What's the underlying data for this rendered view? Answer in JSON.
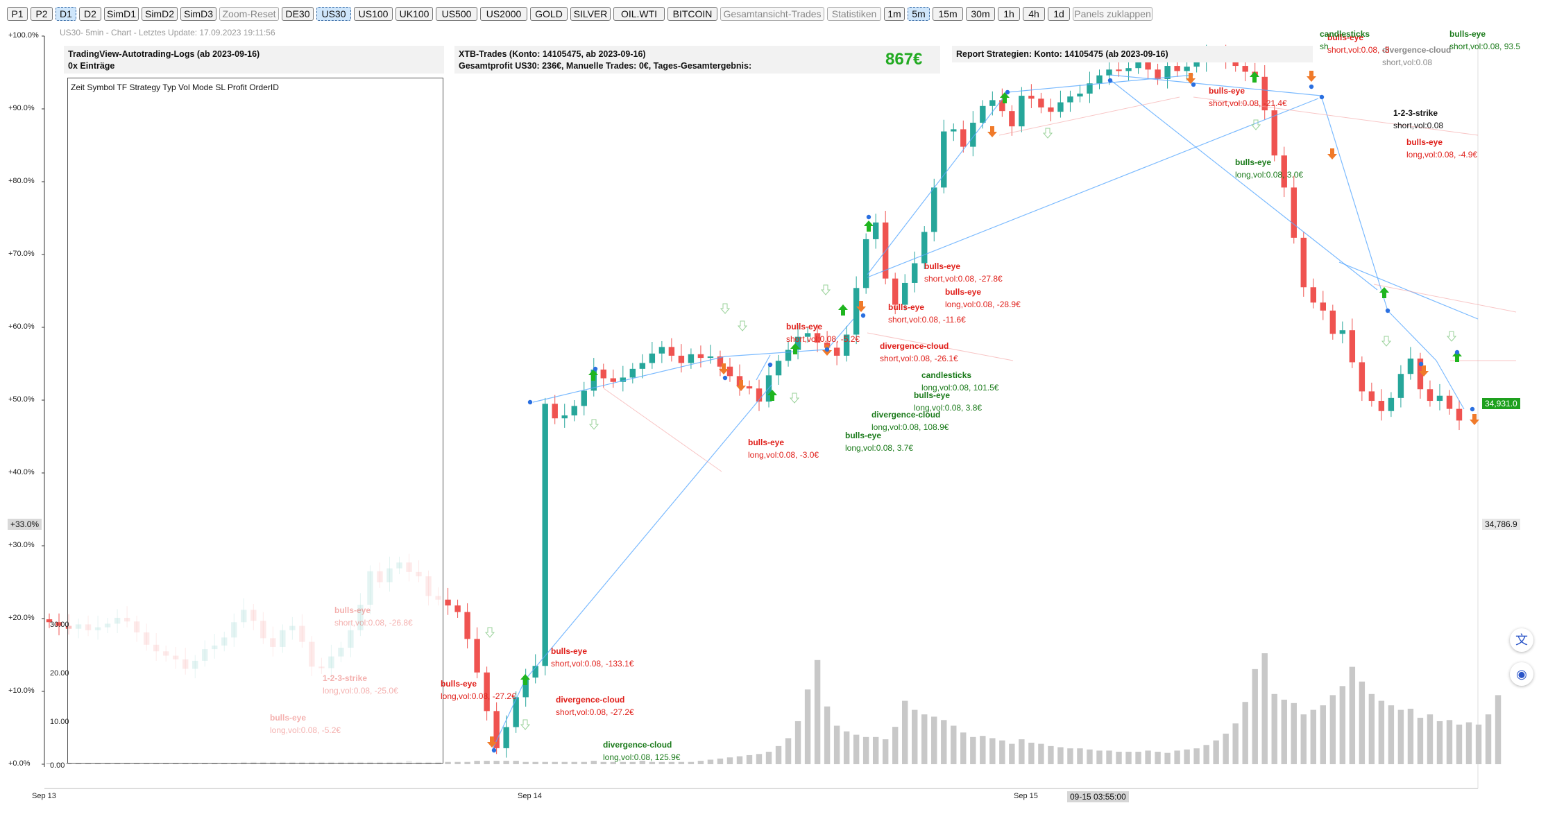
{
  "toolbar": {
    "buttons": [
      {
        "label": "P1",
        "state": "normal"
      },
      {
        "label": "P2",
        "state": "normal"
      },
      {
        "label": "D1",
        "state": "active"
      },
      {
        "label": "D2",
        "state": "normal"
      },
      {
        "label": "SimD1",
        "state": "normal"
      },
      {
        "label": "SimD2",
        "state": "normal"
      },
      {
        "label": "SimD3",
        "state": "normal"
      },
      {
        "label": "Zoom-Reset",
        "state": "dim"
      },
      {
        "label": "DE30",
        "state": "normal"
      },
      {
        "label": "US30",
        "state": "active"
      },
      {
        "label": "US100",
        "state": "normal"
      },
      {
        "label": "UK100",
        "state": "normal"
      },
      {
        "label": "US500",
        "state": "normal"
      },
      {
        "label": "US2000",
        "state": "normal"
      },
      {
        "label": "GOLD",
        "state": "normal"
      },
      {
        "label": "SILVER",
        "state": "normal"
      },
      {
        "label": "OIL.WTI",
        "state": "normal"
      },
      {
        "label": "BITCOIN",
        "state": "normal"
      },
      {
        "label": "Gesamtansicht-Trades",
        "state": "dim"
      },
      {
        "label": "Statistiken",
        "state": "dim"
      },
      {
        "label": "1m",
        "state": "normal"
      },
      {
        "label": "5m",
        "state": "active"
      },
      {
        "label": "15m",
        "state": "normal"
      },
      {
        "label": "30m",
        "state": "normal"
      },
      {
        "label": "1h",
        "state": "normal"
      },
      {
        "label": "4h",
        "state": "normal"
      },
      {
        "label": "1d",
        "state": "normal"
      },
      {
        "label": "Panels zuklappen",
        "state": "dim"
      }
    ]
  },
  "caption": "US30- 5min - Chart - Letztes Update: 17.09.2023 19:11:56",
  "panels": {
    "logs": {
      "title": "TradingView-Autotrading-Logs (ab 2023-09-16)",
      "subtitle": "0x Einträge",
      "columns": "Zeit Symbol TF Strategy Typ Vol Mode SL Profit OrderID"
    },
    "xtb": {
      "title": "XTB-Trades (Konto: 14105475, ab 2023-09-16)",
      "subtitle": "Gesamtprofit US30: 236€, Manuelle Trades: 0€, Tages-Gesamtergebnis:",
      "profit": "867€"
    },
    "report": {
      "title": "Report Strategien: Konto: 14105475 (ab 2023-09-16)"
    }
  },
  "axes": {
    "y_percent": [
      "+100.0%",
      "+90.0%",
      "+80.0%",
      "+70.0%",
      "+60.0%",
      "+50.0%",
      "+40.0%",
      "+30.0%",
      "+20.0%",
      "+10.0%",
      "+0.0%"
    ],
    "y_left_inner": [
      "30.00",
      "20.00",
      "10.00",
      "0.00"
    ],
    "x": [
      "Sep 13",
      "Sep 14",
      "Sep 15"
    ],
    "crosshair_time": "09-15 03:55:00",
    "left_marker": "+33.0%",
    "price_right": "34,786.9",
    "price_current": "34,931.0"
  },
  "chart_data": {
    "type": "candlestick",
    "series_colors": {
      "up": "#26a69a",
      "down": "#ef5350",
      "volume": "#c8c8c8",
      "trade_line": "#5aa9ff"
    },
    "close_percent": [
      19.5,
      19,
      18.6,
      19.2,
      18.4,
      18.8,
      19.3,
      20.1,
      19.6,
      18.1,
      16.4,
      15.5,
      14.9,
      14.4,
      13.1,
      14.2,
      15.8,
      16.3,
      17.4,
      19.5,
      21.2,
      19.7,
      17.3,
      16.1,
      18.4,
      19.0,
      16.8,
      13.4,
      13.2,
      14.8,
      16.0,
      18.4,
      21.9,
      26.5,
      25.0,
      26.9,
      27.7,
      26.4,
      25.8,
      23.1,
      22.6,
      21.8,
      20.9,
      17.2,
      12.6,
      7.3,
      2.2,
      5.1,
      9.2,
      11.9,
      13.5,
      49.5,
      47.5,
      47.9,
      49.2,
      51.3,
      54.2,
      53.0,
      52.5,
      53.1,
      54.3,
      55.1,
      56.4,
      57.3,
      56.1,
      55.1,
      56.3,
      55.8,
      56.0,
      54.6,
      53.3,
      51.9,
      51.6,
      49.8,
      53.4,
      55.4,
      56.9,
      58.7,
      59.2,
      57.9,
      57.2,
      56.1,
      59.0,
      65.4,
      72.1,
      74.4,
      66.7,
      63.1,
      66.1,
      68.8,
      73.1,
      79.2,
      86.9,
      87.2,
      84.8,
      88.1,
      90.4,
      91.2,
      89.7,
      87.6,
      91.8,
      91.4,
      90.2,
      89.6,
      90.9,
      91.7,
      92.1,
      93.5,
      94.6,
      95.4,
      95.2,
      95.6,
      96.8,
      95.4,
      94.1,
      95.9,
      95.2,
      95.8,
      96.4,
      97.2,
      97.6,
      96.8,
      95.9,
      95.1,
      94.4,
      89.8,
      83.6,
      79.2,
      72.3,
      65.5,
      63.4,
      62.3,
      59.1,
      59.6,
      55.2,
      51.2,
      49.9,
      48.5,
      50.3,
      53.6,
      55.7,
      51.5,
      49.9,
      50.6,
      48.8,
      47.2
    ],
    "volume": [
      1,
      1,
      1,
      1,
      1,
      1,
      1,
      1,
      1,
      1,
      1,
      1,
      1,
      1,
      1,
      1,
      1,
      1,
      1,
      1,
      2,
      2,
      2,
      2,
      2,
      2,
      2,
      2,
      2,
      2,
      2,
      2,
      2,
      2,
      2,
      2,
      2,
      3,
      2,
      2,
      2,
      2,
      2,
      2,
      3,
      3,
      3,
      3,
      3,
      2,
      2,
      2,
      2,
      2,
      2,
      2,
      3,
      2,
      2,
      2,
      2,
      3,
      2,
      2,
      2,
      2,
      2,
      3,
      4,
      5,
      6,
      7,
      8,
      9,
      11,
      16,
      23,
      38,
      66,
      92,
      51,
      34,
      29,
      26,
      24,
      24,
      22,
      33,
      56,
      48,
      44,
      42,
      39,
      34,
      28,
      24,
      25,
      23,
      21,
      18,
      22,
      19,
      18,
      16,
      15,
      14,
      14,
      13,
      12,
      12,
      11,
      11,
      11,
      12,
      11,
      10,
      12,
      13,
      14,
      17,
      21,
      27,
      36,
      55,
      84,
      98,
      62,
      57,
      54,
      44,
      48,
      52,
      61,
      69,
      86,
      73,
      62,
      56,
      52,
      48,
      49,
      41,
      44,
      38,
      39,
      35,
      37,
      35,
      44,
      61
    ],
    "trades": [
      {
        "strategy": "bulls-eye",
        "text": "short,vol:0.08, -133.1€",
        "color": "red"
      },
      {
        "strategy": "divergence-cloud",
        "text": "short,vol:0.08, -27.2€",
        "color": "red"
      },
      {
        "strategy": "divergence-cloud",
        "text": "long,vol:0.08, 125.9€",
        "color": "green"
      },
      {
        "strategy": "bulls-eye",
        "text": "long,vol:0.08, -27.2€",
        "color": "red"
      },
      {
        "strategy": "bulls-eye",
        "text": "long,vol:0.08, -3.0€",
        "color": "red"
      },
      {
        "strategy": "bulls-eye",
        "text": "short,vol:0.08, -5.2€",
        "color": "red"
      },
      {
        "strategy": "bulls-eye",
        "text": "long,vol:0.08, 3.7€",
        "color": "green"
      },
      {
        "strategy": "divergence-cloud",
        "text": "long,vol:0.08, 108.9€",
        "color": "green"
      },
      {
        "strategy": "bulls-eye",
        "text": "long,vol:0.08, 3.8€",
        "color": "green"
      },
      {
        "strategy": "candlesticks",
        "text": "long,vol:0.08, 101.5€",
        "color": "green"
      },
      {
        "strategy": "divergence-cloud",
        "text": "short,vol:0.08, -26.1€",
        "color": "red"
      },
      {
        "strategy": "bulls-eye",
        "text": "short,vol:0.08, -11.6€",
        "color": "red"
      },
      {
        "strategy": "bulls-eye",
        "text": "long,vol:0.08, -28.9€",
        "color": "red"
      },
      {
        "strategy": "bulls-eye",
        "text": "short,vol:0.08, -27.8€",
        "color": "red"
      },
      {
        "strategy": "bulls-eye",
        "text": "short,vol:0.08, -21.4€",
        "color": "red"
      },
      {
        "strategy": "bulls-eye",
        "text": "long,vol:0.08, 3.0€",
        "color": "green"
      },
      {
        "strategy": "1-2-3-strike",
        "text": "short,vol:0.08",
        "color": "black"
      },
      {
        "strategy": "bulls-eye",
        "text": "long,vol:0.08, -4.9€",
        "color": "red"
      },
      {
        "strategy": "divergence-cloud",
        "text": "short,vol:0.08",
        "color": "grey"
      },
      {
        "strategy": "bulls-eye",
        "text": "short,vol:0.08, -3",
        "color": "red"
      },
      {
        "strategy": "candlesticks",
        "text": "sh",
        "color": "green"
      },
      {
        "strategy": "bulls-eye",
        "text": "short,vol:0.08, 93.5",
        "color": "green"
      },
      {
        "strategy": "bulls-eye",
        "text": "short,vol:0.08, -26.8€",
        "color": "red"
      },
      {
        "strategy": "1-2-3-strike",
        "text": "long,vol:0.08, -25.0€",
        "color": "red"
      },
      {
        "strategy": "bulls-eye",
        "text": "long,vol:0.08, -5.2€",
        "color": "red"
      }
    ]
  }
}
